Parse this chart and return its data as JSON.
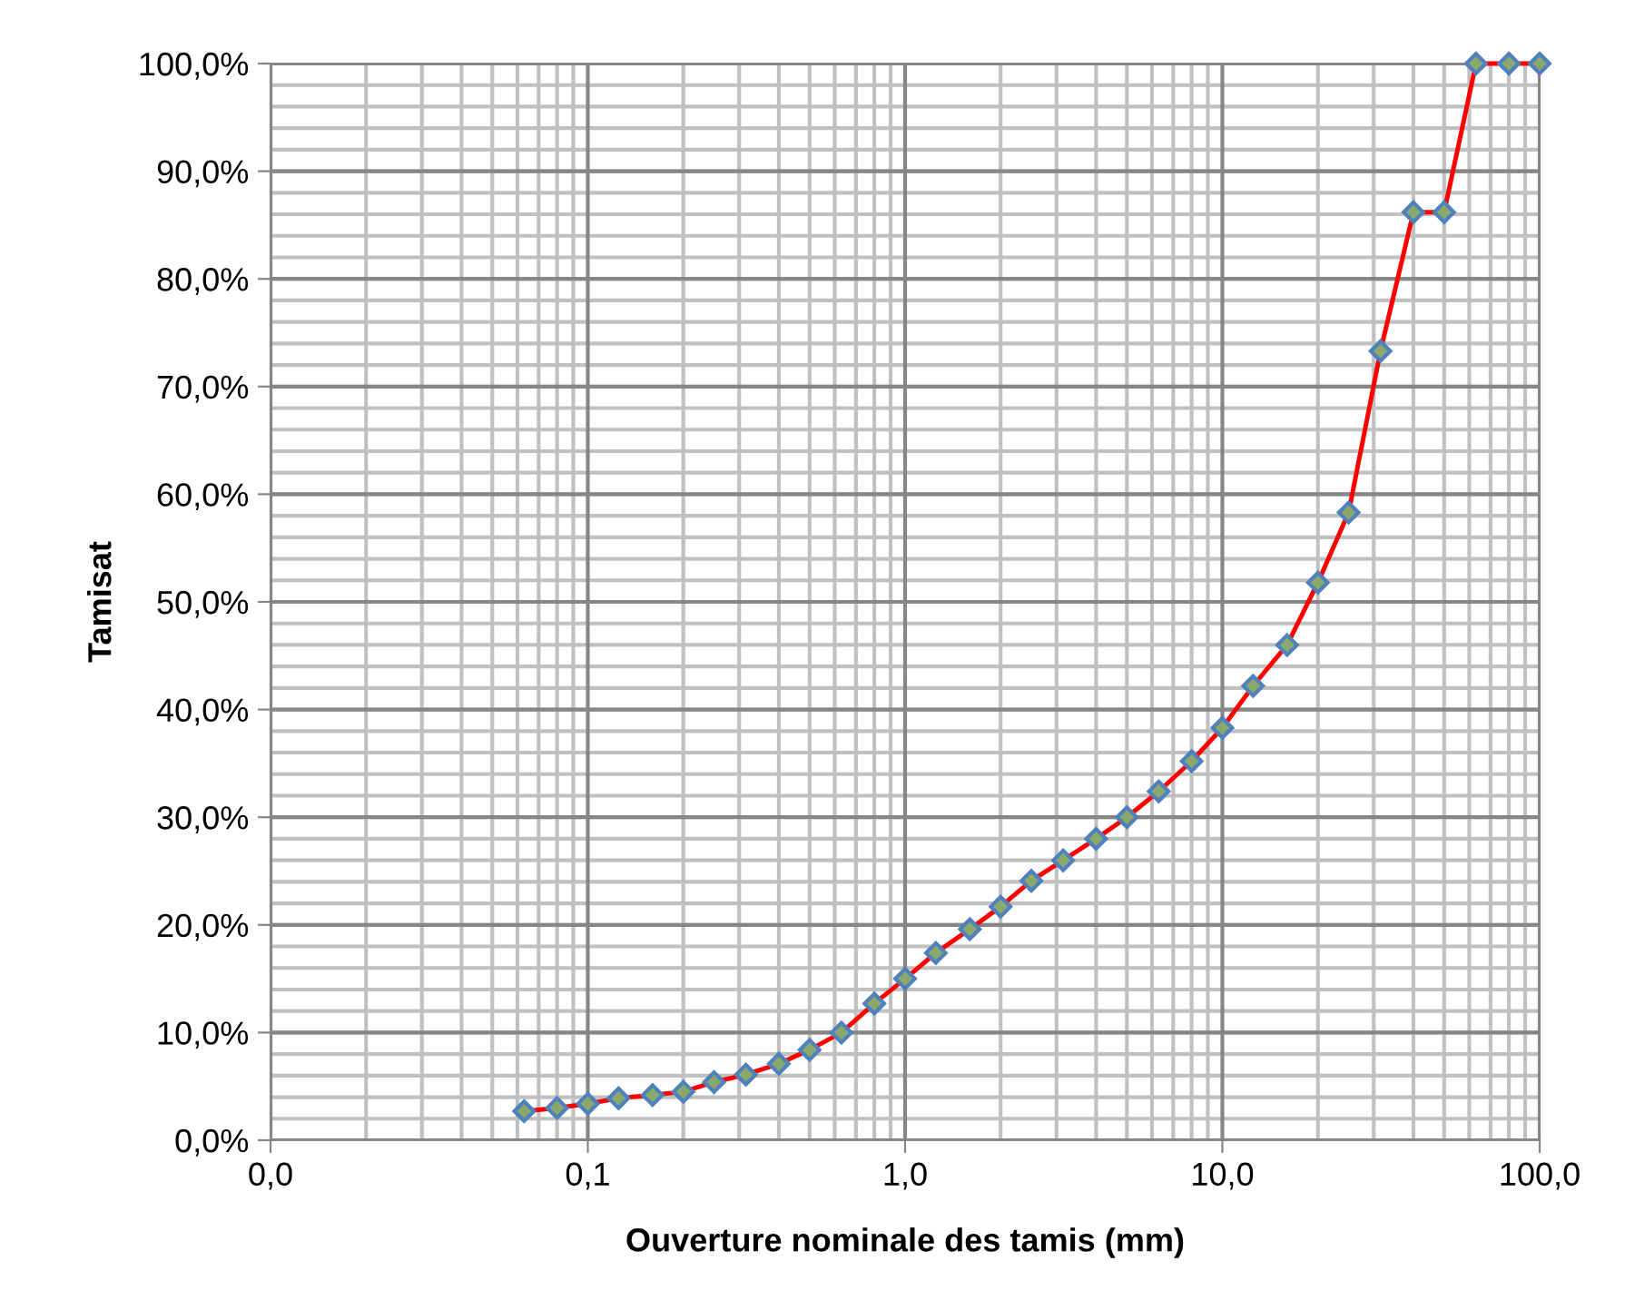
{
  "chart_data": {
    "type": "line",
    "xlabel": "Ouverture nominale des tamis (mm)",
    "ylabel": "Tamisat",
    "log": "x",
    "grid": true,
    "marker": "diamond",
    "line_style": "solid",
    "x": [
      0.063,
      0.08,
      0.1,
      0.125,
      0.16,
      0.2,
      0.25,
      0.315,
      0.4,
      0.5,
      0.63,
      0.8,
      1,
      1.25,
      1.6,
      2,
      2.5,
      3.15,
      4,
      5,
      6.3,
      8,
      10,
      12.5,
      16,
      20,
      25,
      31.5,
      40,
      50,
      63,
      80,
      100
    ],
    "series": [
      {
        "color": "#ff0000",
        "values": [
          2.7,
          3.0,
          3.4,
          3.9,
          4.2,
          4.5,
          5.4,
          6.1,
          7.1,
          8.4,
          10.0,
          12.7,
          15.0,
          17.4,
          19.6,
          21.7,
          24.1,
          26.0,
          28.0,
          30.0,
          32.4,
          35.2,
          38.3,
          42.2,
          46.0,
          51.8,
          58.3,
          73.3,
          86.2,
          86.2,
          100,
          100,
          100
        ]
      }
    ],
    "xlim": [
      0.01,
      100
    ],
    "xticks": [
      {
        "value": 0.01,
        "label": "0,0"
      },
      {
        "value": 0.1,
        "label": "0,1"
      },
      {
        "value": 1,
        "label": "1,0"
      },
      {
        "value": 10,
        "label": "10,0"
      },
      {
        "value": 100,
        "label": "100,0"
      }
    ],
    "ylim": [
      0,
      100
    ],
    "yticks": [
      {
        "value": 0,
        "label": "0,0%"
      },
      {
        "value": 10,
        "label": "10,0%"
      },
      {
        "value": 20,
        "label": "20,0%"
      },
      {
        "value": 30,
        "label": "30,0%"
      },
      {
        "value": 40,
        "label": "40,0%"
      },
      {
        "value": 50,
        "label": "50,0%"
      },
      {
        "value": 60,
        "label": "60,0%"
      },
      {
        "value": 70,
        "label": "70,0%"
      },
      {
        "value": 80,
        "label": "80,0%"
      },
      {
        "value": 90,
        "label": "90,0%"
      },
      {
        "value": 100,
        "label": "100,0%"
      }
    ]
  }
}
